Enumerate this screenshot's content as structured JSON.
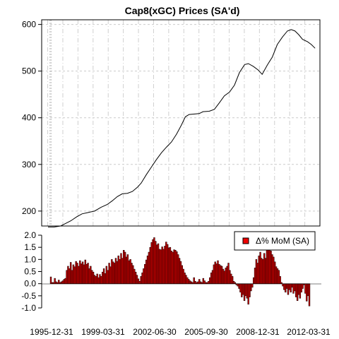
{
  "chart_data": [
    {
      "type": "line",
      "title": "Cap8(xGC) Prices (SA'd)",
      "xlabel": "",
      "ylabel": "",
      "ylim": [
        168,
        610
      ],
      "yticks": [
        200,
        300,
        400,
        500,
        600
      ],
      "grid": true,
      "series": [
        {
          "values": [
            [
              1995.92,
              166
            ],
            [
              1996.33,
              166
            ],
            [
              1996.75,
              168
            ],
            [
              1997.0,
              172
            ],
            [
              1997.42,
              179
            ],
            [
              1997.83,
              188
            ],
            [
              1998.17,
              194
            ],
            [
              1998.58,
              197
            ],
            [
              1999.0,
              200
            ],
            [
              1999.42,
              208
            ],
            [
              1999.83,
              214
            ],
            [
              2000.17,
              222
            ],
            [
              2000.5,
              231
            ],
            [
              2000.83,
              237
            ],
            [
              2001.17,
              238
            ],
            [
              2001.5,
              242
            ],
            [
              2001.83,
              251
            ],
            [
              2002.08,
              260
            ],
            [
              2002.42,
              278
            ],
            [
              2002.75,
              294
            ],
            [
              2003.08,
              310
            ],
            [
              2003.42,
              325
            ],
            [
              2003.75,
              337
            ],
            [
              2004.08,
              348
            ],
            [
              2004.42,
              365
            ],
            [
              2004.75,
              385
            ],
            [
              2005.0,
              402
            ],
            [
              2005.25,
              407
            ],
            [
              2005.58,
              408
            ],
            [
              2005.92,
              409
            ],
            [
              2006.17,
              413
            ],
            [
              2006.58,
              414
            ],
            [
              2006.92,
              418
            ],
            [
              2007.25,
              432
            ],
            [
              2007.58,
              447
            ],
            [
              2007.92,
              455
            ],
            [
              2008.25,
              470
            ],
            [
              2008.58,
              497
            ],
            [
              2008.92,
              514
            ],
            [
              2009.17,
              516
            ],
            [
              2009.5,
              510
            ],
            [
              2009.83,
              502
            ],
            [
              2010.08,
              493
            ],
            [
              2010.42,
              513
            ],
            [
              2010.75,
              530
            ],
            [
              2011.08,
              557
            ],
            [
              2011.42,
              573
            ],
            [
              2011.75,
              586
            ],
            [
              2012.0,
              589
            ],
            [
              2012.25,
              586
            ],
            [
              2012.5,
              578
            ],
            [
              2012.75,
              568
            ],
            [
              2013.08,
              563
            ],
            [
              2013.33,
              557
            ],
            [
              2013.58,
              549
            ]
          ]
        }
      ]
    },
    {
      "type": "bar",
      "title": "",
      "xlabel": "",
      "ylabel": "",
      "ylim": [
        -1.0,
        2.0
      ],
      "yticks": [
        "-1.0",
        "-0.5",
        "0.0",
        "0.5",
        "1.0",
        "1.5",
        "2.0"
      ],
      "xticks": [
        "1995-12-31",
        "1999-03-31",
        "2002-06-30",
        "2005-09-30",
        "2008-12-31",
        "2012-03-31"
      ],
      "legend": {
        "position": "top-right",
        "label": "Δ% MoM (SA)"
      },
      "series": [
        {
          "name": "Δ% MoM (SA)",
          "color": "#cc0000",
          "values": [
            0.28,
            0.05,
            0.05,
            0.22,
            0.08,
            0.05,
            0.15,
            0.05,
            0.08,
            0.12,
            0.18,
            0.22,
            0.55,
            0.72,
            0.62,
            0.88,
            0.55,
            0.78,
            0.7,
            0.92,
            0.85,
            0.72,
            0.95,
            0.82,
            0.9,
            0.78,
            0.98,
            0.8,
            0.85,
            0.62,
            0.72,
            0.55,
            0.48,
            0.35,
            0.3,
            0.4,
            0.25,
            0.38,
            0.3,
            0.48,
            0.62,
            0.42,
            0.72,
            0.55,
            0.85,
            0.7,
            1.0,
            0.9,
            0.85,
            1.05,
            0.92,
            1.15,
            1.0,
            1.25,
            1.05,
            1.38,
            1.3,
            1.1,
            1.2,
            0.95,
            1.0,
            0.85,
            0.75,
            0.6,
            0.48,
            0.35,
            0.2,
            0.1,
            0.3,
            0.45,
            0.62,
            0.8,
            0.98,
            1.15,
            1.3,
            1.5,
            1.7,
            1.82,
            1.9,
            1.75,
            1.6,
            1.65,
            1.42,
            1.4,
            1.52,
            1.42,
            1.55,
            1.72,
            1.62,
            1.48,
            1.5,
            1.35,
            1.3,
            1.4,
            1.38,
            1.32,
            1.2,
            1.05,
            0.92,
            0.75,
            0.6,
            0.45,
            0.35,
            0.25,
            0.18,
            0.12,
            0.08,
            0.05,
            0.25,
            0.1,
            0.05,
            0.08,
            0.18,
            0.08,
            0.05,
            0.22,
            0.12,
            0.05,
            0.05,
            0.1,
            0.25,
            0.45,
            0.55,
            0.78,
            0.9,
            0.82,
            0.95,
            0.8,
            0.75,
            0.72,
            0.6,
            0.52,
            0.65,
            0.72,
            0.85,
            0.55,
            0.4,
            0.3,
            0.1,
            0.05,
            -0.05,
            -0.1,
            -0.2,
            -0.35,
            -0.55,
            -0.45,
            -0.7,
            -0.5,
            -0.6,
            -0.85,
            -0.55,
            -0.3,
            -0.15,
            0.25,
            0.65,
            1.0,
            0.85,
            1.15,
            1.3,
            1.05,
            1.0,
            1.25,
            1.05,
            1.4,
            1.5,
            1.7,
            1.35,
            1.2,
            1.1,
            0.9,
            0.7,
            0.62,
            0.55,
            0.3,
            0.05,
            -0.1,
            -0.25,
            -0.35,
            -0.2,
            -0.45,
            -0.25,
            -0.35,
            -0.15,
            -0.4,
            -0.3,
            -0.55,
            -0.7,
            -0.45,
            -0.6,
            -0.35,
            -0.2,
            -0.05,
            -0.4,
            -0.72,
            -0.5,
            -0.92
          ]
        }
      ]
    }
  ]
}
